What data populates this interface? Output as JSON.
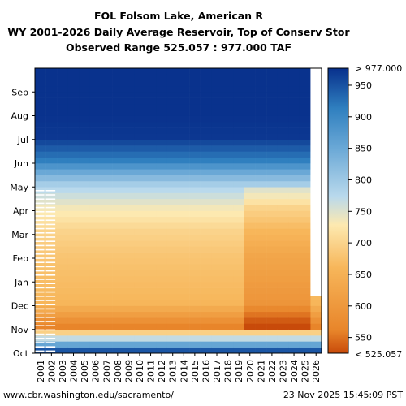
{
  "chart_data": {
    "type": "heatmap",
    "title_lines": [
      "FOL Folsom Lake, American R",
      "WY 2001-2026 Daily Average Reservoir, Top of Conserv Stor",
      "Observed Range 525.057 : 977.000 TAF"
    ],
    "x_categories": [
      "2001",
      "2002",
      "2003",
      "2004",
      "2005",
      "2006",
      "2007",
      "2008",
      "2009",
      "2010",
      "2011",
      "2012",
      "2013",
      "2014",
      "2015",
      "2016",
      "2017",
      "2018",
      "2019",
      "2020",
      "2021",
      "2022",
      "2023",
      "2024",
      "2025",
      "2026"
    ],
    "y_categories": [
      "Oct",
      "Nov",
      "Dec",
      "Jan",
      "Feb",
      "Mar",
      "Apr",
      "May",
      "Jun",
      "Jul",
      "Aug",
      "Sep"
    ],
    "value_unit": "TAF",
    "value_range": [
      525.057,
      977.0
    ],
    "colorbar": {
      "top_label": "> 977.000",
      "bottom_label": "< 525.057",
      "ticks": [
        950,
        900,
        850,
        800,
        750,
        700,
        650,
        600,
        550
      ],
      "min": 525.057,
      "max": 977.0
    },
    "colors": {
      "high": "#08308c",
      "mid_high": "#2f7fbf",
      "mid": "#8fc0dc",
      "neutral": "#fde9b0",
      "mid_low": "#f7b65a",
      "low": "#e8852a",
      "lowest": "#c84a0a"
    },
    "monthly_profile": {
      "description_months": [
        "Oct",
        "Nov",
        "Dec",
        "Jan",
        "Feb",
        "Mar",
        "Apr",
        "May",
        "Jun",
        "Jul",
        "Aug",
        "Sep"
      ],
      "typical_values": [
        940,
        560,
        620,
        630,
        640,
        660,
        700,
        780,
        900,
        970,
        975,
        975
      ]
    },
    "no_data": [
      {
        "year": "2001",
        "months": [
          "Oct",
          "Nov",
          "Dec",
          "Jan",
          "Feb",
          "Mar",
          "Apr",
          "May",
          "Jun",
          "Jul",
          "Aug",
          "Sep"
        ],
        "partial": true
      },
      {
        "year": "2002",
        "months": [
          "Oct",
          "Nov",
          "Dec",
          "Jan",
          "Feb",
          "Mar",
          "Apr",
          "May",
          "Jun",
          "Jul",
          "Aug",
          "Sep"
        ],
        "partial": true
      },
      {
        "year": "2026",
        "months": [
          "Dec",
          "Jan",
          "Feb",
          "Mar",
          "Apr",
          "May",
          "Jun",
          "Jul",
          "Aug",
          "Sep"
        ],
        "partial": false
      }
    ],
    "dry_years": [
      "2020",
      "2021",
      "2022",
      "2023",
      "2024",
      "2025"
    ]
  },
  "footer": {
    "source": "www.cbr.washington.edu/sacramento/",
    "timestamp": "23 Nov 2025 15:45:09 PST"
  }
}
